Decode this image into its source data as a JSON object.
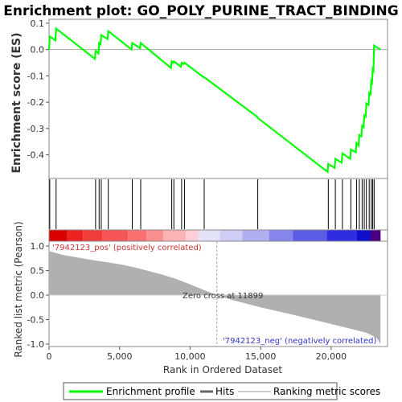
{
  "chart_data": {
    "type": "line",
    "title": "Enrichment plot: GO_POLY_PURINE_TRACT_BINDING",
    "es_panel": {
      "ylabel": "Enrichment score (ES)",
      "ylim": [
        -0.49,
        0.115
      ],
      "yticks": [
        0.1,
        0.0,
        -0.1,
        -0.2,
        -0.3,
        -0.4
      ],
      "ytick_labels": [
        "0.1",
        "0.0",
        "-0.1",
        "-0.2",
        "-0.3",
        "-0.4"
      ]
    },
    "metric_panel": {
      "ylabel": "Ranked list metric (Pearson)",
      "ylim": [
        -1.05,
        1.1
      ],
      "yticks": [
        1.0,
        0.5,
        0.0,
        -0.5,
        -1.0
      ],
      "ytick_labels": [
        "1.0",
        "0.5",
        "0.0",
        "-0.5",
        "-1.0"
      ],
      "pos_label": "'7942123_pos' (positively correlated)",
      "neg_label": "'7942123_neg' (negatively correlated)",
      "zero_cross_label": "Zero cross at 11899",
      "zero_cross": 11899,
      "curve": [
        [
          0,
          0.9
        ],
        [
          1000,
          0.82
        ],
        [
          3000,
          0.72
        ],
        [
          5000,
          0.63
        ],
        [
          6000,
          0.57
        ],
        [
          8000,
          0.42
        ],
        [
          9000,
          0.33
        ],
        [
          10000,
          0.22
        ],
        [
          11000,
          0.1
        ],
        [
          11899,
          0.0
        ],
        [
          13000,
          -0.1
        ],
        [
          15000,
          -0.25
        ],
        [
          17000,
          -0.38
        ],
        [
          19000,
          -0.52
        ],
        [
          21000,
          -0.66
        ],
        [
          22500,
          -0.77
        ],
        [
          23000,
          -0.84
        ],
        [
          23300,
          -0.9
        ],
        [
          23500,
          -1.0
        ]
      ]
    },
    "xlabel": "Rank in Ordered Dataset",
    "xlim": [
      0,
      24000
    ],
    "xticks": [
      0,
      5000,
      10000,
      15000,
      20000
    ],
    "xtick_labels": [
      "0",
      "5,000",
      "10,000",
      "15,000",
      "20,000"
    ],
    "n_genes": 23500,
    "hits": [
      50,
      500,
      3300,
      3550,
      3700,
      4200,
      5900,
      6500,
      8700,
      8850,
      9400,
      9600,
      11000,
      14800,
      19800,
      20300,
      20800,
      21400,
      21800,
      22000,
      22200,
      22350,
      22500,
      22700,
      22850,
      22950,
      23050
    ],
    "series": [
      {
        "name": "Enrichment profile",
        "color": "#00ff00",
        "x": [
          0,
          50,
          450,
          500,
          3250,
          3300,
          3500,
          3550,
          3650,
          3700,
          4150,
          4200,
          5850,
          5900,
          6450,
          6500,
          8650,
          8700,
          8800,
          8850,
          9350,
          9400,
          9550,
          9600,
          10950,
          11000,
          14750,
          14800,
          19750,
          19800,
          20250,
          20300,
          20750,
          20800,
          21350,
          21400,
          21750,
          21800,
          21950,
          22000,
          22150,
          22200,
          22300,
          22350,
          22450,
          22500,
          22650,
          22700,
          22800,
          22850,
          22900,
          22950,
          23000,
          23050,
          23500
        ],
        "y": [
          0.0,
          0.05,
          0.035,
          0.08,
          -0.035,
          -0.005,
          -0.015,
          0.025,
          0.02,
          0.055,
          0.04,
          0.07,
          0.0,
          0.025,
          0.005,
          0.025,
          -0.07,
          -0.045,
          -0.05,
          -0.045,
          -0.065,
          -0.05,
          -0.055,
          -0.05,
          -0.105,
          -0.105,
          -0.255,
          -0.26,
          -0.465,
          -0.435,
          -0.45,
          -0.415,
          -0.43,
          -0.395,
          -0.415,
          -0.38,
          -0.39,
          -0.355,
          -0.365,
          -0.325,
          -0.33,
          -0.29,
          -0.295,
          -0.25,
          -0.255,
          -0.205,
          -0.21,
          -0.165,
          -0.17,
          -0.12,
          -0.125,
          -0.075,
          -0.08,
          0.015,
          0.0
        ]
      }
    ],
    "legend": [
      "Enrichment profile",
      "Hits",
      "Ranking metric scores"
    ]
  }
}
